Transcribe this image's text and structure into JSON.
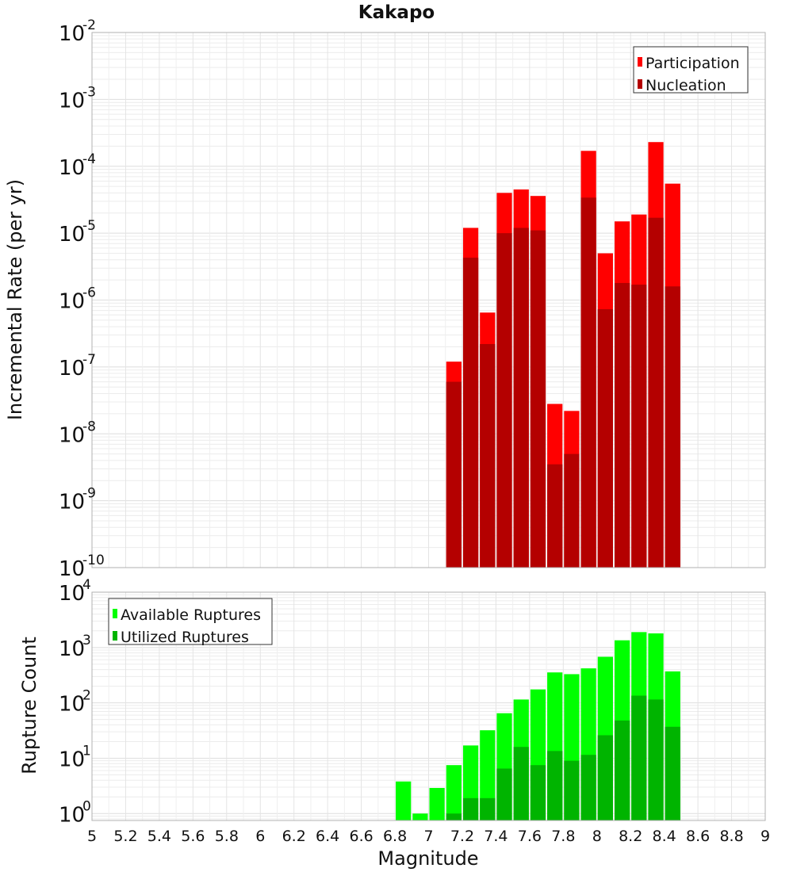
{
  "chart_data": [
    {
      "type": "bar",
      "title": "Kakapo",
      "ylabel": "Incremental Rate (per yr)",
      "xlabel": "",
      "y_scale": "log",
      "ylim": [
        1e-10,
        0.01
      ],
      "xlim": [
        5,
        9
      ],
      "grid": true,
      "legend_position": "top-right",
      "y_ticks": [
        {
          "base": "10",
          "exp": "-10"
        },
        {
          "base": "10",
          "exp": "-9"
        },
        {
          "base": "10",
          "exp": "-8"
        },
        {
          "base": "10",
          "exp": "-7"
        },
        {
          "base": "10",
          "exp": "-6"
        },
        {
          "base": "10",
          "exp": "-5"
        },
        {
          "base": "10",
          "exp": "-4"
        },
        {
          "base": "10",
          "exp": "-3"
        },
        {
          "base": "10",
          "exp": "-2"
        }
      ],
      "x": [
        7.15,
        7.25,
        7.35,
        7.45,
        7.55,
        7.65,
        7.75,
        7.85,
        7.95,
        8.05,
        8.15,
        8.25,
        8.35,
        8.45
      ],
      "series": [
        {
          "name": "Participation",
          "color": "#ff0000",
          "values": [
            1.2e-07,
            1.2e-05,
            6.5e-07,
            4e-05,
            4.5e-05,
            3.6e-05,
            2.8e-08,
            2.2e-08,
            0.00017,
            5e-06,
            1.5e-05,
            1.9e-05,
            0.00023,
            5.5e-05
          ]
        },
        {
          "name": "Nucleation",
          "color": "#b40000",
          "values": [
            6e-08,
            4.3e-06,
            2.2e-07,
            1e-05,
            1.2e-05,
            1.1e-05,
            3.5e-09,
            5e-09,
            3.4e-05,
            7.3e-07,
            1.8e-06,
            1.7e-06,
            1.7e-05,
            1.6e-06
          ]
        }
      ]
    },
    {
      "type": "bar",
      "title": "",
      "ylabel": "Rupture Count",
      "xlabel": "Magnitude",
      "y_scale": "log",
      "ylim": [
        0.75,
        10000
      ],
      "xlim": [
        5,
        9
      ],
      "grid": true,
      "legend_position": "top-left",
      "y_ticks": [
        {
          "base": "10",
          "exp": "0"
        },
        {
          "base": "10",
          "exp": "1"
        },
        {
          "base": "10",
          "exp": "2"
        },
        {
          "base": "10",
          "exp": "3"
        },
        {
          "base": "10",
          "exp": "4"
        }
      ],
      "x_ticks": [
        "5",
        "5.2",
        "5.4",
        "5.6",
        "5.8",
        "6",
        "6.2",
        "6.4",
        "6.6",
        "6.8",
        "7",
        "7.2",
        "7.4",
        "7.6",
        "7.8",
        "8",
        "8.2",
        "8.4",
        "8.6",
        "8.8",
        "9"
      ],
      "x": [
        6.85,
        6.95,
        7.05,
        7.15,
        7.25,
        7.35,
        7.45,
        7.55,
        7.65,
        7.75,
        7.85,
        7.95,
        8.05,
        8.15,
        8.25,
        8.35,
        8.45
      ],
      "series": [
        {
          "name": "Available Ruptures",
          "color": "#00ff00",
          "values": [
            3.8,
            1,
            2.9,
            7.5,
            17,
            32,
            65,
            115,
            175,
            355,
            330,
            420,
            680,
            1350,
            1900,
            1800,
            370
          ]
        },
        {
          "name": "Utilized Ruptures",
          "color": "#00b400",
          "values": [
            null,
            null,
            null,
            1,
            1.9,
            1.9,
            6.5,
            16,
            7.5,
            13.5,
            9,
            11.5,
            26,
            48,
            135,
            115,
            37
          ]
        }
      ]
    }
  ]
}
